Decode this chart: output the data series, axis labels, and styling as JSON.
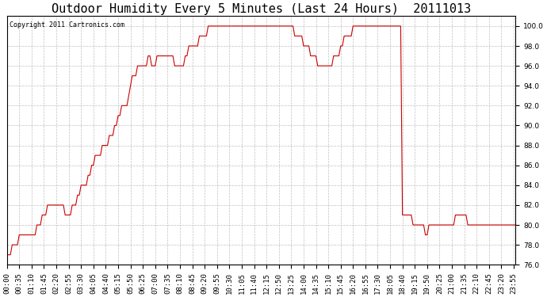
{
  "title": "Outdoor Humidity Every 5 Minutes (Last 24 Hours)  20111013",
  "copyright": "Copyright 2011 Cartronics.com",
  "line_color": "#cc0000",
  "bg_color": "#ffffff",
  "grid_color": "#b0b0b0",
  "ylim": [
    76.0,
    101.0
  ],
  "yticks": [
    76.0,
    78.0,
    80.0,
    82.0,
    84.0,
    86.0,
    88.0,
    90.0,
    92.0,
    94.0,
    96.0,
    98.0,
    100.0
  ],
  "title_fontsize": 11,
  "tick_fontsize": 6.5,
  "copyright_fontsize": 6,
  "humidity_data": [
    77,
    77,
    77,
    78,
    78,
    78,
    78,
    79,
    79,
    79,
    79,
    79,
    79,
    79,
    79,
    79,
    79,
    80,
    80,
    80,
    81,
    81,
    81,
    82,
    82,
    82,
    82,
    82,
    82,
    82,
    82,
    82,
    82,
    81,
    81,
    81,
    81,
    82,
    82,
    82,
    83,
    83,
    84,
    84,
    84,
    84,
    85,
    85,
    86,
    86,
    87,
    87,
    87,
    87,
    88,
    88,
    88,
    88,
    89,
    89,
    89,
    90,
    90,
    91,
    91,
    92,
    92,
    92,
    92,
    93,
    94,
    95,
    95,
    95,
    96,
    96,
    96,
    96,
    96,
    96,
    97,
    97,
    96,
    96,
    96,
    97,
    97,
    97,
    97,
    97,
    97,
    97,
    97,
    97,
    97,
    96,
    96,
    96,
    96,
    96,
    96,
    97,
    97,
    98,
    98,
    98,
    98,
    98,
    98,
    99,
    99,
    99,
    99,
    99,
    100,
    100,
    100,
    100,
    100,
    100,
    100,
    100,
    100,
    100,
    100,
    100,
    100,
    100,
    100,
    100,
    100,
    100,
    100,
    100,
    100,
    100,
    100,
    100,
    100,
    100,
    100,
    100,
    100,
    100,
    100,
    100,
    100,
    100,
    100,
    100,
    100,
    100,
    100,
    100,
    100,
    100,
    100,
    100,
    100,
    100,
    100,
    100,
    100,
    99,
    99,
    99,
    99,
    99,
    98,
    98,
    98,
    98,
    97,
    97,
    97,
    97,
    96,
    96,
    96,
    96,
    96,
    96,
    96,
    96,
    96,
    97,
    97,
    97,
    97,
    98,
    98,
    99,
    99,
    99,
    99,
    99,
    100,
    100,
    100,
    100,
    100,
    100,
    100,
    100,
    100,
    100,
    100,
    100,
    100,
    100,
    100,
    100,
    100,
    100,
    100,
    100,
    100,
    100,
    100,
    100,
    100,
    100,
    100,
    100,
    81,
    81,
    81,
    81,
    81,
    81,
    80,
    80,
    80,
    80,
    80,
    80,
    80,
    79,
    79,
    80,
    80,
    80,
    80,
    80,
    80,
    80,
    80,
    80,
    80,
    80,
    80,
    80,
    80,
    80,
    81,
    81,
    81,
    81,
    81,
    81,
    81,
    80,
    80,
    80,
    80,
    80,
    80,
    80,
    80,
    80,
    80,
    80,
    80,
    80,
    80,
    80,
    80,
    80,
    80,
    80,
    80,
    80,
    80,
    80,
    80,
    80,
    80,
    80,
    80
  ]
}
